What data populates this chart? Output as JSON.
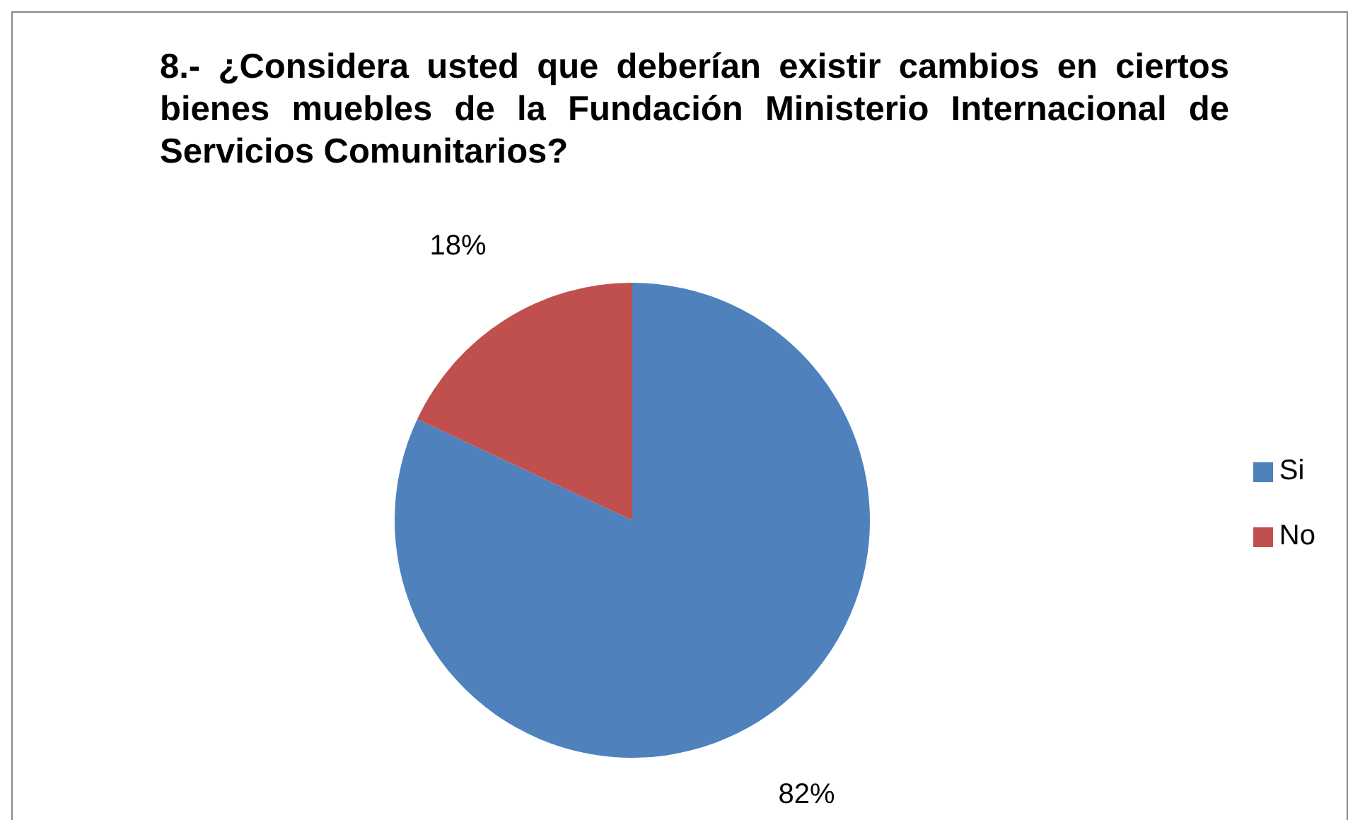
{
  "chart_data": {
    "type": "pie",
    "title": "8.- ¿Considera usted que deberían existir cambios en ciertos bienes muebles de la Fundación Ministerio Internacional de Servicios Comunitarios?",
    "categories": [
      "Si",
      "No"
    ],
    "values": [
      82,
      18
    ],
    "value_labels": [
      "82%",
      "18%"
    ],
    "colors": [
      "#4f81bd",
      "#c0504d"
    ],
    "legend": "right"
  }
}
